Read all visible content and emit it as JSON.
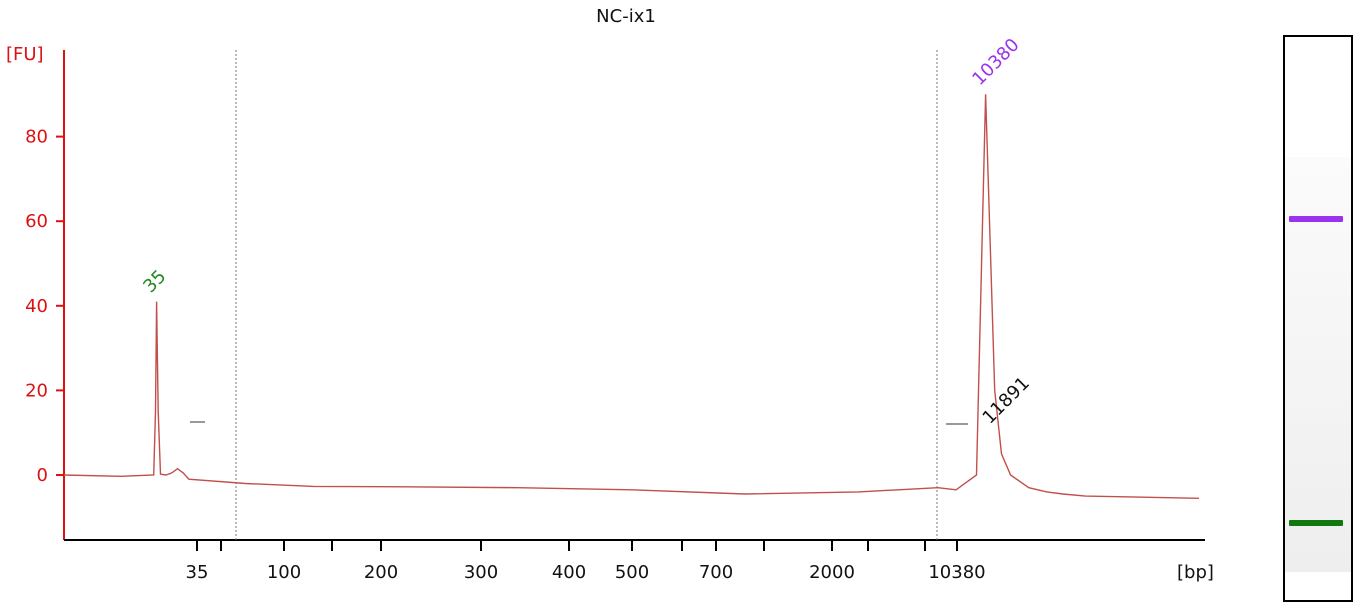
{
  "chart_data": {
    "type": "line",
    "title": "NC-ix1",
    "ylabel": "[FU]",
    "xlabel": "[bp]",
    "ylim": [
      -15,
      100
    ],
    "yticks": [
      0,
      20,
      40,
      60,
      80
    ],
    "xtick_labels": [
      "35",
      "100",
      "200",
      "300",
      "400",
      "500",
      "700",
      "2000",
      "10380"
    ],
    "series": [
      {
        "color": "#c0504d",
        "x": [
          0.0,
          2.5,
          3.95,
          4.03,
          4.08,
          4.15,
          4.25,
          4.5,
          4.75,
          5.0,
          5.25,
          5.5,
          8.0,
          11.0,
          15.0,
          20.0,
          25.0,
          30.0,
          35.0,
          38.5,
          39.3,
          40.2,
          40.6,
          41.0,
          41.3,
          41.7,
          42.5,
          43.3,
          44.0,
          45.0,
          50.0
        ],
        "y": [
          0.0,
          -0.3,
          0.0,
          15.0,
          41.0,
          15.0,
          0.2,
          0.0,
          0.5,
          1.5,
          0.5,
          -1.0,
          -2.0,
          -2.7,
          -2.8,
          -3.0,
          -3.5,
          -4.5,
          -4.0,
          -3.0,
          -3.5,
          0.0,
          90.0,
          20.0,
          5.0,
          0.0,
          -3.0,
          -4.0,
          -4.5,
          -5.0,
          -5.5
        ]
      }
    ],
    "peaks": [
      {
        "label": "35",
        "x": 4.08,
        "y": 41,
        "color": "#228822"
      },
      {
        "label": "10380",
        "x": 40.6,
        "y": 90,
        "color": "#9933ee"
      },
      {
        "label": "11891",
        "x": 41.05,
        "y": 10,
        "color": "#111111"
      }
    ]
  },
  "gel": {
    "bands": [
      {
        "color": "#9933ee",
        "position": 0.33
      },
      {
        "color": "#117711",
        "position": 0.89
      }
    ]
  }
}
